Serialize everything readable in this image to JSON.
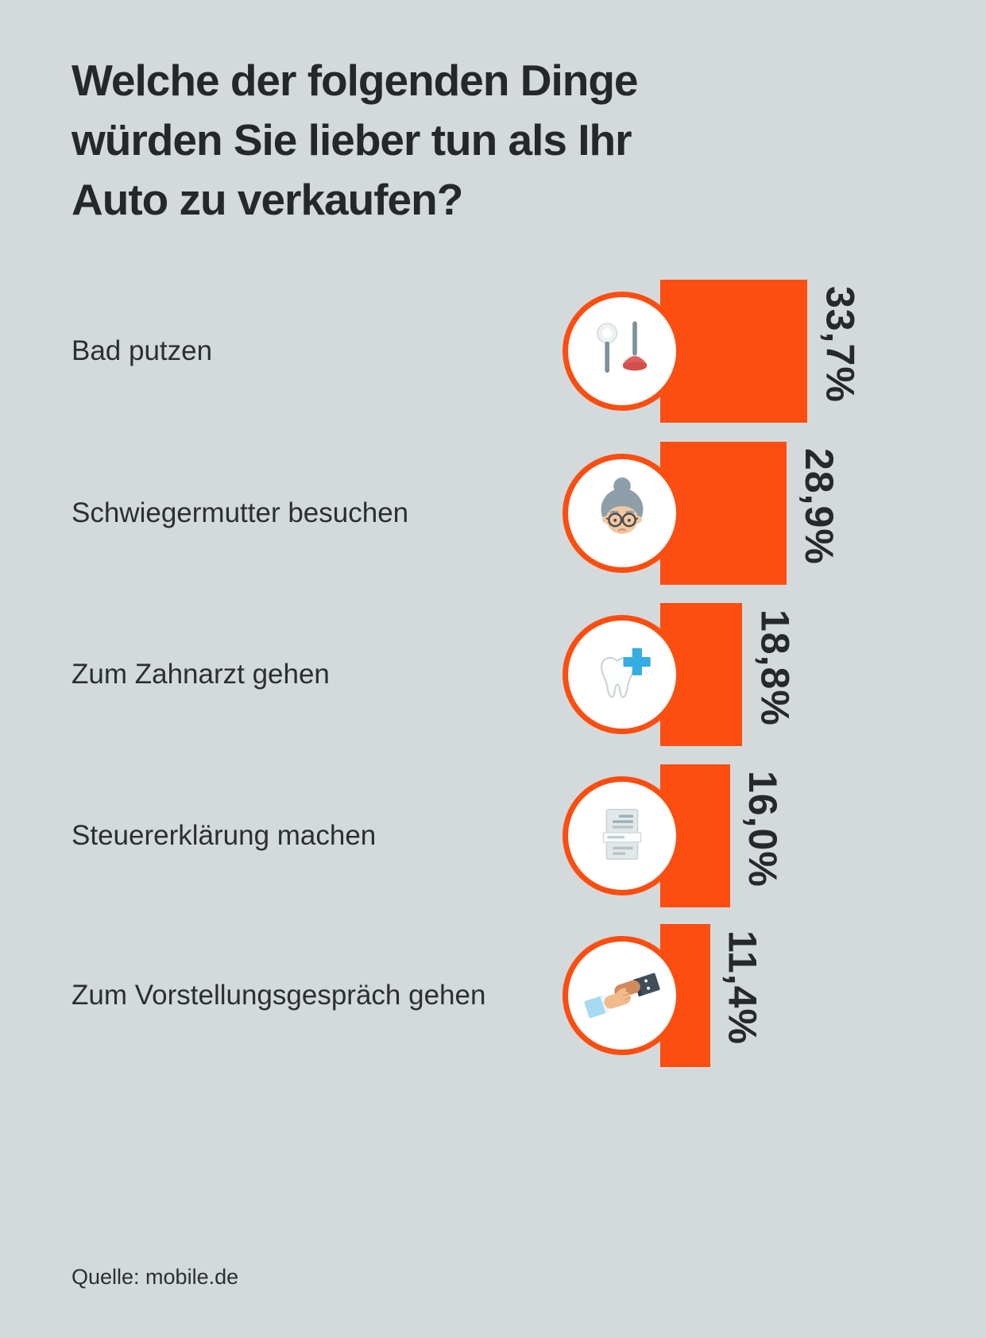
{
  "meta": {
    "accent_color": "#fb4e10",
    "background_color": "#d4dadb",
    "text_color": "#2b2f31"
  },
  "title_lines": {
    "line1": "Welche der folgenden Dinge",
    "line2": "würden Sie lieber tun als Ihr",
    "line3": "Auto zu verkaufen?"
  },
  "source": "Quelle: mobile.de",
  "chart_data": {
    "type": "bar",
    "orientation": "horizontal",
    "title": "Welche der folgenden Dinge würden Sie lieber tun als Ihr Auto zu verkaufen?",
    "unit": "%",
    "categories": [
      "Bad putzen",
      "Schwiegermutter besuchen",
      "Zum Zahnarzt gehen",
      "Steuererklärung machen",
      "Zum Vorstellungsgespräch gehen"
    ],
    "values": [
      33.7,
      28.9,
      18.8,
      16.0,
      11.4
    ],
    "value_labels": [
      "33,7%",
      "28,9%",
      "18,8%",
      "16,0%",
      "11,4%"
    ],
    "icons": [
      "toilet-brush-plunger-icon",
      "mother-in-law-icon",
      "tooth-dentist-icon",
      "tax-document-icon",
      "handshake-icon"
    ],
    "xlim": [
      0,
      35
    ],
    "grid": false,
    "legend": false,
    "source": "Quelle: mobile.de",
    "bar_color": "#fb4e10"
  },
  "rows": [
    {
      "label": "Bad putzen",
      "value_label": "33,7%",
      "icon": "toilet-brush-plunger-icon"
    },
    {
      "label": "Schwiegermutter besuchen",
      "value_label": "28,9%",
      "icon": "mother-in-law-icon"
    },
    {
      "label": "Zum Zahnarzt gehen",
      "value_label": "18,8%",
      "icon": "tooth-dentist-icon"
    },
    {
      "label": "Steuererklärung machen",
      "value_label": "16,0%",
      "icon": "tax-document-icon"
    },
    {
      "label": "Zum Vorstellungsgespräch gehen",
      "value_label": "11,4%",
      "icon": "handshake-icon"
    }
  ]
}
